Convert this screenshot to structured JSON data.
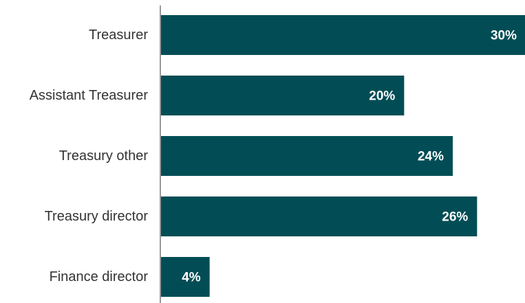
{
  "colors": {
    "bar": "#024d55",
    "axis": "#333333",
    "label": "#333333",
    "data_label": "#ffffff",
    "background": "#ffffff"
  },
  "chart_data": {
    "type": "bar",
    "orientation": "horizontal",
    "categories": [
      "Treasurer",
      "Assistant Treasurer",
      "Treasury other",
      "Treasury director",
      "Finance director"
    ],
    "values": [
      30,
      20,
      24,
      26,
      4
    ],
    "value_labels": [
      "30%",
      "20%",
      "24%",
      "26%",
      "4%"
    ],
    "unit": "%",
    "xlim": [
      0,
      30
    ],
    "grid": false,
    "legend": "none",
    "title": "",
    "xlabel": "",
    "ylabel": ""
  }
}
